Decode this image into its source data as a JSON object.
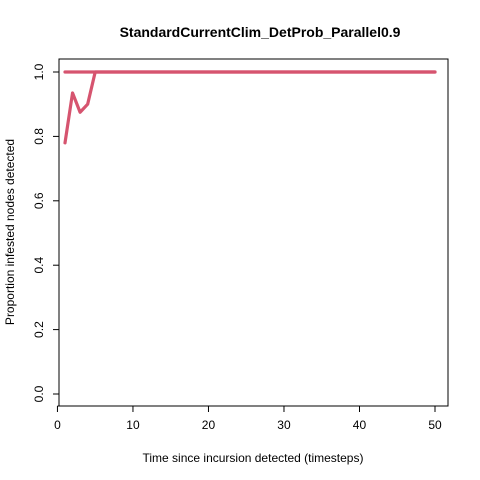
{
  "chart_data": {
    "type": "line",
    "title": "StandardCurrentClim_DetProb_Parallel0.9",
    "xlabel": "Time since incursion detected (timesteps)",
    "ylabel": "Proportion infested nodes detected",
    "xlim": [
      1,
      50
    ],
    "ylim": [
      0,
      1
    ],
    "x_ticks": [
      0,
      10,
      20,
      30,
      40,
      50
    ],
    "y_ticks": [
      0.0,
      0.2,
      0.4,
      0.6,
      0.8,
      1.0
    ],
    "x_tick_labels": [
      "0",
      "10",
      "20",
      "30",
      "40",
      "50"
    ],
    "y_tick_labels": [
      "0.0",
      "0.2",
      "0.4",
      "0.6",
      "0.8",
      "1.0"
    ],
    "grid": false,
    "legend": "none",
    "series": [
      {
        "color": "#D6546F",
        "x": [
          1,
          2,
          3,
          4,
          5,
          6,
          7,
          8,
          9,
          10,
          11,
          12,
          13,
          14,
          15,
          16,
          17,
          18,
          19,
          20,
          21,
          22,
          23,
          24,
          25,
          26,
          27,
          28,
          29,
          30,
          31,
          32,
          33,
          34,
          35,
          36,
          37,
          38,
          39,
          40,
          41,
          42,
          43,
          44,
          45,
          46,
          47,
          48,
          49,
          50
        ],
        "y": [
          0.78,
          0.935,
          0.875,
          0.9,
          1.0,
          1.0,
          1.0,
          1.0,
          1.0,
          1.0,
          1.0,
          1.0,
          1.0,
          1.0,
          1.0,
          1.0,
          1.0,
          1.0,
          1.0,
          1.0,
          1.0,
          1.0,
          1.0,
          1.0,
          1.0,
          1.0,
          1.0,
          1.0,
          1.0,
          1.0,
          1.0,
          1.0,
          1.0,
          1.0,
          1.0,
          1.0,
          1.0,
          1.0,
          1.0,
          1.0,
          1.0,
          1.0,
          1.0,
          1.0,
          1.0,
          1.0,
          1.0,
          1.0,
          1.0,
          1.0
        ]
      },
      {
        "color": "#D6546F",
        "x": [
          1,
          50
        ],
        "y": [
          1.0,
          1.0
        ]
      }
    ]
  }
}
